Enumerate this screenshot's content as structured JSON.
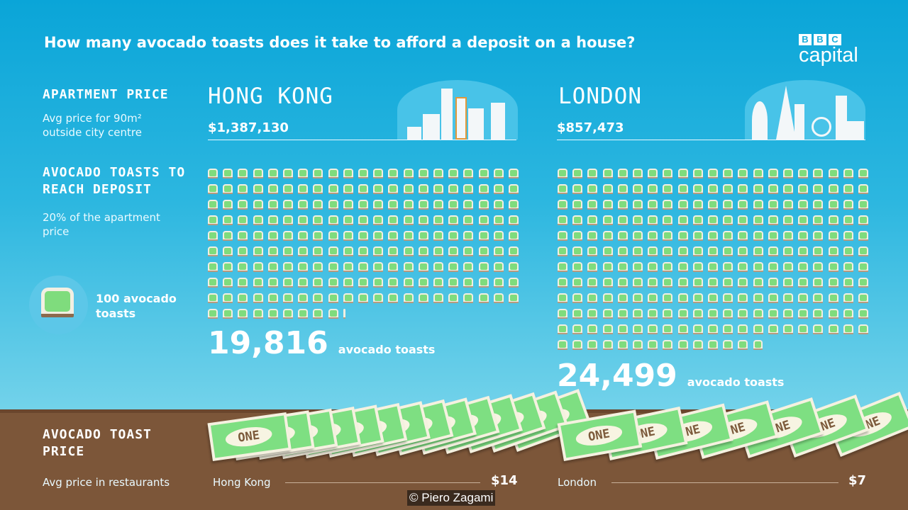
{
  "title": "How many avocado toasts does it take to afford a deposit on a house?",
  "logo": {
    "brand": "BBC",
    "section": "capital"
  },
  "left": {
    "apartment_label": "APARTMENT PRICE",
    "apartment_sub": "Avg price for 90m² outside city centre",
    "toasts_label": "AVOCADO TOASTS TO REACH DEPOSIT",
    "toasts_sub": "20% of the apartment price",
    "legend_text": "100 avocado toasts",
    "toast_price_label": "AVOCADO TOAST PRICE",
    "toast_price_sub": "Avg price in restaurants"
  },
  "cities": [
    {
      "name": "HONG KONG",
      "short_name": "Hong Kong",
      "apartment_price": "$1,387,130",
      "toasts": "19,816",
      "toasts_unit": "avocado toasts",
      "toast_price": "$14"
    },
    {
      "name": "LONDON",
      "short_name": "London",
      "apartment_price": "$857,473",
      "toasts": "24,499",
      "toasts_unit": "avocado toasts",
      "toast_price": "$7"
    }
  ],
  "bill_text": "ONE",
  "credit": "© Piero Zagami",
  "colors": {
    "sky": "#0aa5d8",
    "ground": "#7c5639",
    "avocado": "#7fdc7d"
  },
  "chart_data": {
    "type": "bar",
    "pictogram_unit": 100,
    "categories": [
      "Hong Kong",
      "London"
    ],
    "series": [
      {
        "name": "avocado toasts",
        "values": [
          19816,
          24499
        ]
      },
      {
        "name": "toast price (USD)",
        "values": [
          14,
          7
        ]
      }
    ]
  }
}
